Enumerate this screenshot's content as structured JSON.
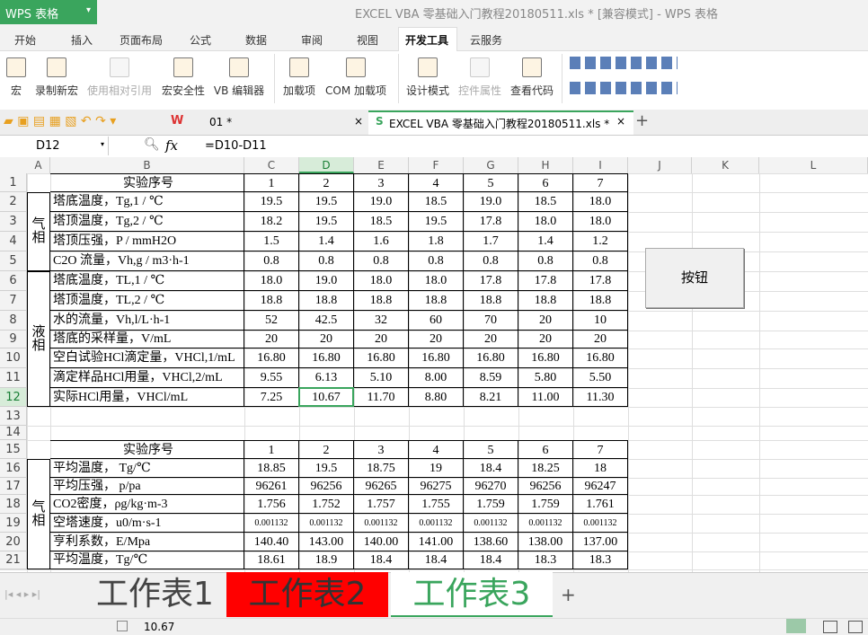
{
  "title_bar": {
    "app": "WPS 表格",
    "title": "EXCEL VBA 零基础入门教程20180511.xls * [兼容模式] - WPS 表格"
  },
  "menu": [
    "开始",
    "插入",
    "页面布局",
    "公式",
    "数据",
    "审阅",
    "视图",
    "开发工具",
    "云服务"
  ],
  "ribbon": [
    "宏",
    "录制新宏",
    "使用相对引用",
    "宏安全性",
    "VB 编辑器",
    "加载项",
    "COM 加载项",
    "设计模式",
    "控件属性",
    "查看代码"
  ],
  "doc_tabs": [
    "01 *",
    "EXCEL VBA 零基础入门教程20180511.xls *"
  ],
  "formula_bar": {
    "cell": "D12",
    "formula": "=D10-D11"
  },
  "sheet": {
    "columns": [
      "A",
      "B",
      "C",
      "D",
      "E",
      "F",
      "G",
      "H",
      "I",
      "J",
      "K",
      "L"
    ],
    "rows": [
      {
        "num": "1",
        "b": "实验序号",
        "values": [
          "1",
          "2",
          "3",
          "4",
          "5",
          "6",
          "7"
        ]
      },
      {
        "num": "2",
        "b": "塔底温度，Tg,1 / ℃",
        "values": [
          "19.5",
          "19.5",
          "19.0",
          "18.5",
          "19.0",
          "18.5",
          "18.0"
        ]
      },
      {
        "num": "3",
        "b": "塔顶温度，Tg,2 / ℃",
        "values": [
          "18.2",
          "19.5",
          "18.5",
          "19.5",
          "17.8",
          "18.0",
          "18.0"
        ]
      },
      {
        "num": "4",
        "b": "塔顶压强，P / mmH2O",
        "values": [
          "1.5",
          "1.4",
          "1.6",
          "1.8",
          "1.7",
          "1.4",
          "1.2"
        ]
      },
      {
        "num": "5",
        "b": "C2O 流量，Vh,g / m3·h-1",
        "values": [
          "0.8",
          "0.8",
          "0.8",
          "0.8",
          "0.8",
          "0.8",
          "0.8"
        ]
      },
      {
        "num": "6",
        "b": "塔底温度，TL,1 / ℃",
        "values": [
          "18.0",
          "19.0",
          "18.0",
          "18.0",
          "17.8",
          "17.8",
          "17.8"
        ]
      },
      {
        "num": "7",
        "b": "塔顶温度，TL,2 / ℃",
        "values": [
          "18.8",
          "18.8",
          "18.8",
          "18.8",
          "18.8",
          "18.8",
          "18.8"
        ]
      },
      {
        "num": "8",
        "b": "水的流量，Vh,l/L·h-1",
        "values": [
          "52",
          "42.5",
          "32",
          "60",
          "70",
          "20",
          "10"
        ]
      },
      {
        "num": "9",
        "b": "塔底的采样量，V/mL",
        "values": [
          "20",
          "20",
          "20",
          "20",
          "20",
          "20",
          "20"
        ]
      },
      {
        "num": "10",
        "b": "空白试验HCl滴定量，VHCl,1/mL",
        "values": [
          "16.80",
          "16.80",
          "16.80",
          "16.80",
          "16.80",
          "16.80",
          "16.80"
        ]
      },
      {
        "num": "11",
        "b": "滴定样品HCl用量，VHCl,2/mL",
        "values": [
          "9.55",
          "6.13",
          "5.10",
          "8.00",
          "8.59",
          "5.80",
          "5.50"
        ]
      },
      {
        "num": "12",
        "b": "实际HCl用量，VHCl/mL",
        "values": [
          "7.25",
          "10.67",
          "11.70",
          "8.80",
          "8.21",
          "11.00",
          "11.30"
        ]
      },
      {
        "num": "13"
      },
      {
        "num": "14"
      },
      {
        "num": "15",
        "b": "实验序号",
        "values": [
          "1",
          "2",
          "3",
          "4",
          "5",
          "6",
          "7"
        ]
      },
      {
        "num": "16",
        "b": "平均温度， Tg/℃",
        "values": [
          "18.85",
          "19.5",
          "18.75",
          "19",
          "18.4",
          "18.25",
          "18"
        ]
      },
      {
        "num": "17",
        "b": "平均压强， p/pa",
        "values": [
          "96261",
          "96256",
          "96265",
          "96275",
          "96270",
          "96256",
          "96247"
        ]
      },
      {
        "num": "18",
        "b": "CO2密度，ρg/kg·m-3",
        "values": [
          "1.756",
          "1.752",
          "1.757",
          "1.755",
          "1.759",
          "1.759",
          "1.761"
        ]
      },
      {
        "num": "19",
        "b": "空塔速度，u0/m·s-1",
        "values": [
          "0.001132",
          "0.001132",
          "0.001132",
          "0.001132",
          "0.001132",
          "0.001132",
          "0.001132"
        ]
      },
      {
        "num": "20",
        "b": "亨利系数，E/Mpa",
        "values": [
          "140.40",
          "143.00",
          "140.00",
          "141.00",
          "138.60",
          "138.00",
          "137.00"
        ]
      },
      {
        "num": "21",
        "b": "平均温度，Tg/℃",
        "values": [
          "18.61",
          "18.9",
          "18.4",
          "18.4",
          "18.4",
          "18.3",
          "18.3"
        ]
      }
    ],
    "groups": [
      {
        "label": "气相",
        "from": 2,
        "to": 5
      },
      {
        "label": "液相",
        "from": 6,
        "to": 12
      },
      {
        "label": "气相",
        "from": 16,
        "to": 21
      }
    ],
    "button": "按钮"
  },
  "sheet_tabs": [
    "工作表1",
    "工作表2",
    "工作表3"
  ],
  "status": "10.67"
}
